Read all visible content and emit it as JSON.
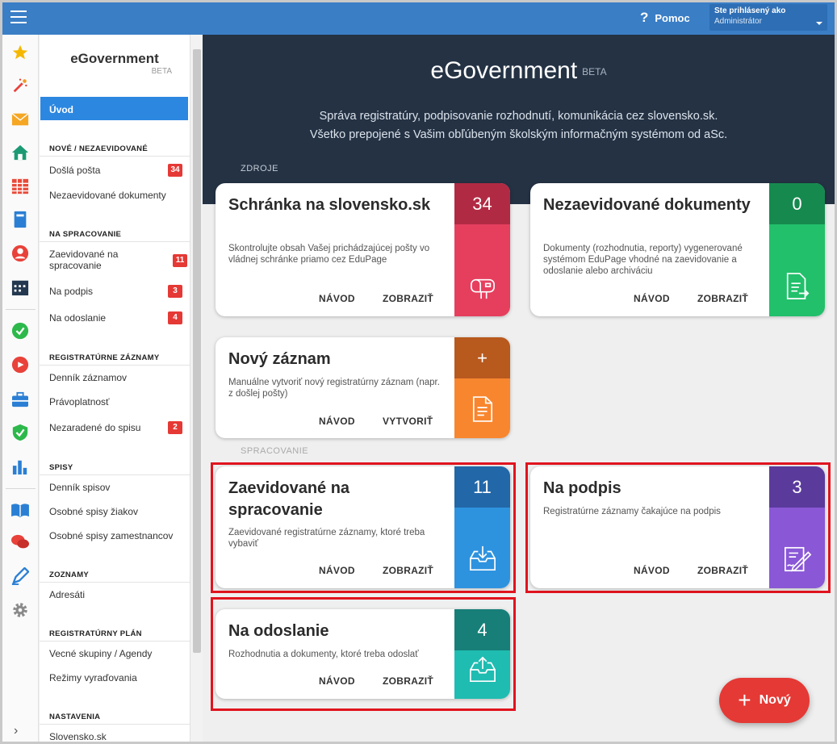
{
  "topbar": {
    "help_label": "Pomoc",
    "user_label": "Ste prihlásený ako",
    "user_name": "Administrátor"
  },
  "sidebar": {
    "app_title": "eGovernment",
    "app_badge": "BETA",
    "active_item": "Úvod",
    "sections": [
      {
        "title": "NOVÉ / NEZAEVIDOVANÉ",
        "items": [
          {
            "label": "Došlá pošta",
            "count": "34"
          },
          {
            "label": "Nezaevidované dokumenty"
          }
        ]
      },
      {
        "title": "NA SPRACOVANIE",
        "items": [
          {
            "label": "Zaevidované na spracovanie",
            "count": "11"
          },
          {
            "label": "Na podpis",
            "count": "3"
          },
          {
            "label": "Na odoslanie",
            "count": "4"
          }
        ]
      },
      {
        "title": "REGISTRATÚRNE ZÁZNAMY",
        "items": [
          {
            "label": "Denník záznamov"
          },
          {
            "label": "Právoplatnosť"
          },
          {
            "label": "Nezaradené do spisu",
            "count": "2"
          }
        ]
      },
      {
        "title": "SPISY",
        "items": [
          {
            "label": "Denník spisov"
          },
          {
            "label": "Osobné spisy žiakov"
          },
          {
            "label": "Osobné spisy zamestnancov"
          }
        ]
      },
      {
        "title": "ZOZNAMY",
        "items": [
          {
            "label": "Adresáti"
          }
        ]
      },
      {
        "title": "REGISTRATÚRNY PLÁN",
        "items": [
          {
            "label": "Vecné skupiny / Agendy"
          },
          {
            "label": "Režimy vyraďovania"
          }
        ]
      },
      {
        "title": "NASTAVENIA",
        "items": [
          {
            "label": "Slovensko.sk"
          }
        ]
      }
    ]
  },
  "rail_icons": [
    "star-icon",
    "magic-wand-icon",
    "mail-icon",
    "home-icon",
    "calendar-grid-icon",
    "notebook-icon",
    "user-circle-icon",
    "schedule-icon",
    "check-circle-icon",
    "target-icon",
    "briefcase-icon",
    "shield-check-icon",
    "bar-chart-icon",
    "book-icon",
    "chat-icon",
    "pen-icon",
    "gear-icon"
  ],
  "hero": {
    "title": "eGovernment",
    "badge": "BETA",
    "line1": "Správa registratúry, podpisovanie rozhodnutí, komunikácia cez slovensko.sk.",
    "line2": "Všetko prepojené s Vašim obľúbeným školským informačným systémom od aSc."
  },
  "section_sources": "ZDROJE",
  "section_processing": "SPRACOVANIE",
  "cards": {
    "schranka": {
      "title": "Schránka na slovensko.sk",
      "desc": "Skontrolujte obsah Vašej prichádzajúcej pošty vo vládnej schránke priamo cez EduPage",
      "count": "34",
      "action1": "NÁVOD",
      "action2": "ZOBRAZIŤ"
    },
    "nezaevidovane": {
      "title": "Nezaevidované dokumenty",
      "desc": "Dokumenty (rozhodnutia, reporty) vygenerované systémom EduPage vhodné na zaevidovanie a odoslanie alebo archiváciu",
      "count": "0",
      "action1": "NÁVOD",
      "action2": "ZOBRAZIŤ"
    },
    "novy": {
      "title": "Nový záznam",
      "desc": "Manuálne vytvoriť nový registratúrny záznam (napr. z došlej pošty)",
      "count": "+",
      "action1": "NÁVOD",
      "action2": "VYTVORIŤ"
    },
    "zaevidovane": {
      "title": "Zaevidované na spracovanie",
      "desc": "Zaevidované registratúrne záznamy, ktoré treba vybaviť",
      "count": "11",
      "action1": "NÁVOD",
      "action2": "ZOBRAZIŤ"
    },
    "podpis": {
      "title": "Na podpis",
      "desc": "Registratúrne záznamy čakajúce na podpis",
      "count": "3",
      "action1": "NÁVOD",
      "action2": "ZOBRAZIŤ"
    },
    "odoslanie": {
      "title": "Na odoslanie",
      "desc": "Rozhodnutia a dokumenty, ktoré treba odoslať",
      "count": "4",
      "action1": "NÁVOD",
      "action2": "ZOBRAZIŤ"
    }
  },
  "fab_label": "Nový",
  "colors": {
    "topbar": "#3a7ec6",
    "hero": "#243244",
    "schranka_top": "#b12a43",
    "schranka_bottom": "#e63f5e",
    "nezaevidovane_top": "#168a4e",
    "nezaevidovane_bottom": "#22c06b",
    "novy_top": "#b8591e",
    "novy_bottom": "#f8862e",
    "zaevidovane_top": "#2267a8",
    "zaevidovane_bottom": "#2e93df",
    "podpis_top": "#5a3b9c",
    "podpis_bottom": "#8a57d6",
    "odoslanie_top": "#177f78",
    "odoslanie_bottom": "#1fbcb1",
    "highlight": "#e0141e"
  }
}
